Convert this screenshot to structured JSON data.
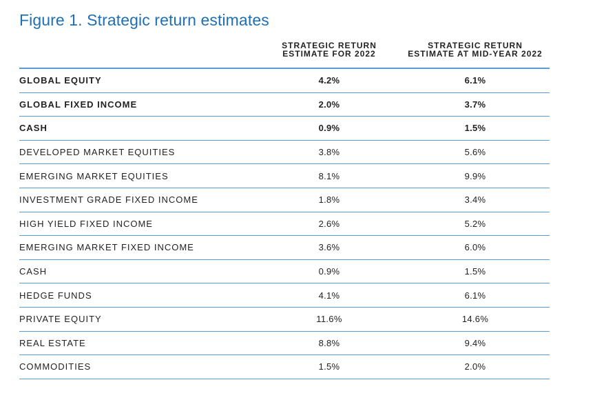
{
  "title": "Figure 1. Strategic return estimates",
  "columns": {
    "col1": [
      "STRATEGIC RETURN",
      "ESTIMATE FOR 2022"
    ],
    "col2": [
      "STRATEGIC RETURN",
      "ESTIMATE AT MID-YEAR 2022"
    ]
  },
  "rows": [
    {
      "label": "GLOBAL EQUITY",
      "v1": "4.2%",
      "v2": "6.1%"
    },
    {
      "label": "GLOBAL FIXED INCOME",
      "v1": "2.0%",
      "v2": "3.7%"
    },
    {
      "label": "CASH",
      "v1": "0.9%",
      "v2": "1.5%"
    },
    {
      "label": "DEVELOPED MARKET EQUITIES",
      "v1": "3.8%",
      "v2": "5.6%"
    },
    {
      "label": "EMERGING MARKET EQUITIES",
      "v1": "8.1%",
      "v2": "9.9%"
    },
    {
      "label": "INVESTMENT GRADE FIXED INCOME",
      "v1": "1.8%",
      "v2": "3.4%"
    },
    {
      "label": "HIGH YIELD FIXED INCOME",
      "v1": "2.6%",
      "v2": "5.2%"
    },
    {
      "label": "EMERGING MARKET FIXED INCOME",
      "v1": "3.6%",
      "v2": "6.0%"
    },
    {
      "label": "CASH",
      "v1": "0.9%",
      "v2": "1.5%"
    },
    {
      "label": "HEDGE FUNDS",
      "v1": "4.1%",
      "v2": "6.1%"
    },
    {
      "label": "PRIVATE EQUITY",
      "v1": "11.6%",
      "v2": "14.6%"
    },
    {
      "label": "REAL ESTATE",
      "v1": "8.8%",
      "v2": "9.4%"
    },
    {
      "label": "COMMODITIES",
      "v1": "1.5%",
      "v2": "2.0%"
    }
  ],
  "bold_row_count": 3,
  "colors": {
    "title": "#1f6fb4",
    "rule": "#5b9bd5"
  }
}
